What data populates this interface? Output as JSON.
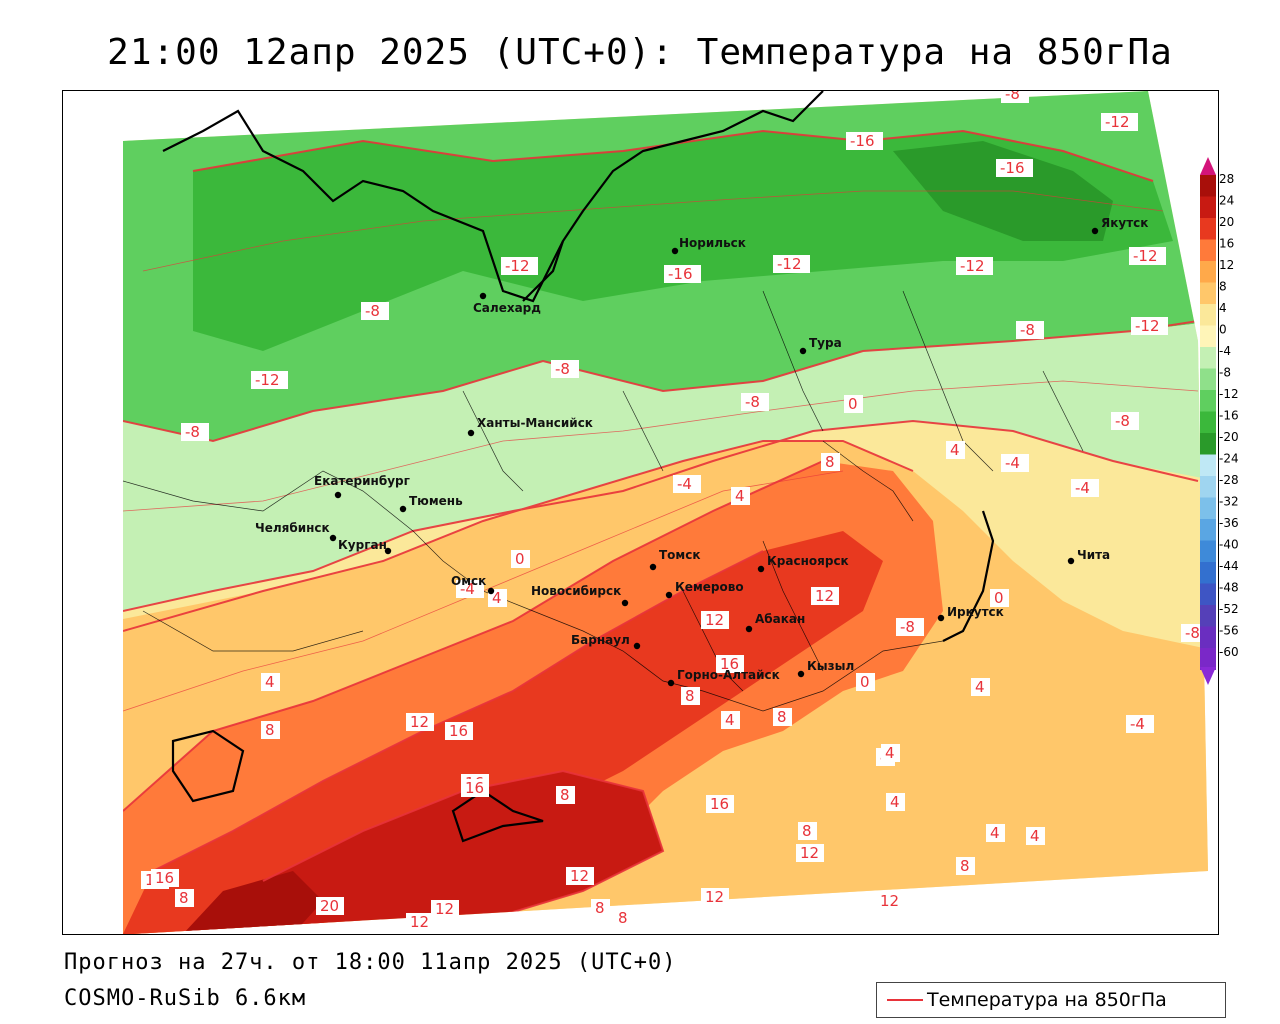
{
  "header": {
    "title": "21:00 12апр 2025 (UTC+0): Температура на 850гПа"
  },
  "map": {
    "cities": [
      {
        "name": "Якутск"
      },
      {
        "name": "Норильск"
      },
      {
        "name": "Салехард"
      },
      {
        "name": "Тура"
      },
      {
        "name": "Ханты-Мансийск"
      },
      {
        "name": "Екатеринбург"
      },
      {
        "name": "Тюмень"
      },
      {
        "name": "Челябинск"
      },
      {
        "name": "Курган"
      },
      {
        "name": "Омск"
      },
      {
        "name": "Томск"
      },
      {
        "name": "Красноярск"
      },
      {
        "name": "Новосибирск"
      },
      {
        "name": "Кемерово"
      },
      {
        "name": "Абакан"
      },
      {
        "name": "Барнаул"
      },
      {
        "name": "Горно-Алтайск"
      },
      {
        "name": "Кызыл"
      },
      {
        "name": "Иркутск"
      },
      {
        "name": "Чита"
      }
    ],
    "isotherm_labels": [
      "-8",
      "-12",
      "-16",
      "-16",
      "-12",
      "-16",
      "-12",
      "-12",
      "-12",
      "-12",
      "-8",
      "-8",
      "-12",
      "-8",
      "-12",
      "-8",
      "-8",
      "-8",
      "0",
      "-4",
      "-4",
      "8",
      "4",
      "4",
      "-4",
      "4",
      "0",
      "-4",
      "4",
      "12",
      "0",
      "-8",
      "12",
      "-8",
      "16",
      "8",
      "4",
      "8",
      "12",
      "16",
      "16",
      "8",
      "4",
      "4",
      "4",
      "0",
      "4",
      "-4",
      "16",
      "16",
      "8",
      "12",
      "12",
      "4",
      "16",
      "8",
      "12",
      "8",
      "12",
      "20",
      "12",
      "16",
      "8",
      "12",
      "8",
      "4",
      "8"
    ]
  },
  "colorbar": {
    "ticks": [
      "28",
      "24",
      "20",
      "16",
      "12",
      "8",
      "4",
      "0",
      "-4",
      "-8",
      "-12",
      "-16",
      "-20",
      "-24",
      "-28",
      "-32",
      "-36",
      "-40",
      "-44",
      "-48",
      "-52",
      "-56",
      "-60"
    ]
  },
  "footer": {
    "forecast": "Прогноз на 27ч. от 18:00 11апр 2025 (UTC+0)",
    "model": "COSMO-RuSib 6.6км"
  },
  "legend": {
    "label": "Температура на 850гПа",
    "line_color": "#e8333a"
  }
}
